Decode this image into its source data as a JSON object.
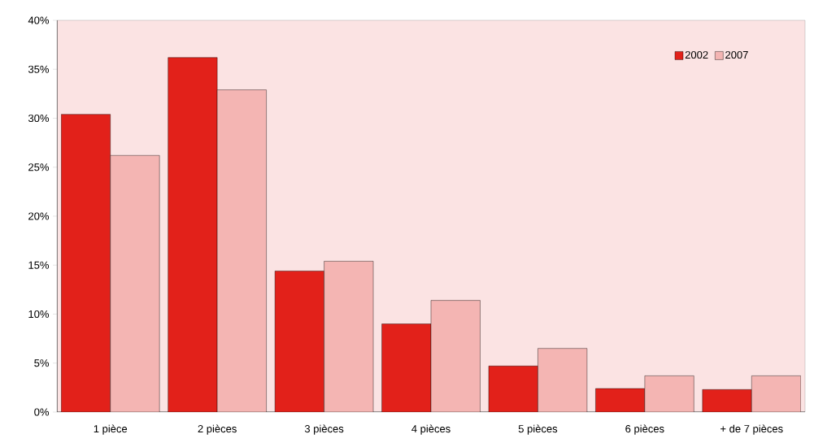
{
  "chart_data": {
    "type": "bar",
    "categories": [
      "1 pièce",
      "2 pièces",
      "3 pièces",
      "4 pièces",
      "5 pièces",
      "6 pièces",
      "+ de 7 pièces"
    ],
    "series": [
      {
        "name": "2002",
        "color": "#e2211a",
        "values": [
          30.4,
          36.2,
          14.4,
          9.0,
          4.7,
          2.4,
          2.3
        ]
      },
      {
        "name": "2007",
        "color": "#f4b5b3",
        "values": [
          26.2,
          32.9,
          15.4,
          11.4,
          6.5,
          3.7,
          3.7
        ]
      }
    ],
    "ylim": [
      0,
      40
    ],
    "yticks": [
      {
        "value": 0,
        "label": "0%"
      },
      {
        "value": 5,
        "label": "5%"
      },
      {
        "value": 10,
        "label": "10%"
      },
      {
        "value": 15,
        "label": "15%"
      },
      {
        "value": 20,
        "label": "20%"
      },
      {
        "value": 25,
        "label": "25%"
      },
      {
        "value": 30,
        "label": "30%"
      },
      {
        "value": 35,
        "label": "35%"
      },
      {
        "value": 40,
        "label": "40%"
      }
    ],
    "legend": "top right",
    "grid": false
  }
}
